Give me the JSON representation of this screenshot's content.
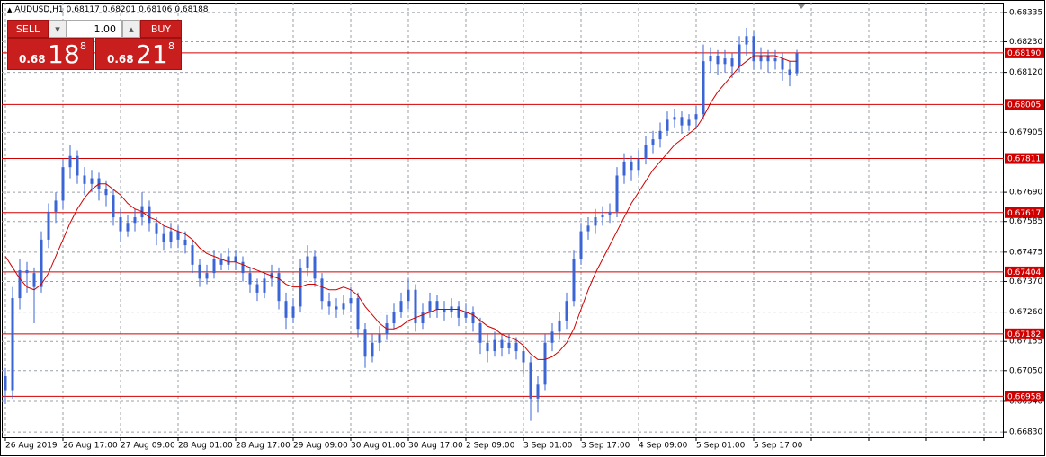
{
  "header": {
    "symbol": "AUDUSD,H1"
  },
  "trade_panel": {
    "sell": "SELL",
    "buy": "BUY",
    "lot": "1.00",
    "sell_price": {
      "prefix": "0.68",
      "big": "18",
      "sup": "8"
    },
    "buy_price": {
      "prefix": "0.68",
      "big": "21",
      "sup": "8"
    }
  },
  "chart_data": {
    "type": "candlestick",
    "up_color": "#3b64d4",
    "down_color": "#3b64d4",
    "ma_color": "#d00000",
    "level_color": "#d00000",
    "grid": true,
    "ylim": [
      0.66811,
      0.6837
    ],
    "yticks": [
      0.68335,
      {
        "value": 0.6823,
        "label": "0.68230"
      },
      {
        "value": 0.6812,
        "label": "0.68120"
      },
      0.67905,
      {
        "value": 0.6769,
        "label": "0.67690"
      },
      0.67585,
      0.67475,
      {
        "value": 0.6737,
        "label": "0.67370"
      },
      {
        "value": 0.6726,
        "label": "0.67260"
      },
      0.67155,
      {
        "value": 0.6705,
        "label": "0.67050"
      },
      {
        "value": 0.6694,
        "label": "0.66940"
      },
      {
        "value": 0.6683,
        "label": "0.66830"
      }
    ],
    "levels": [
      {
        "value": 0.6819,
        "label": "0.68190"
      },
      0.68005,
      0.67811,
      0.67617,
      0.67404,
      0.67182,
      0.66958
    ],
    "categories": [
      "26 Aug 2019",
      null,
      null,
      null,
      null,
      null,
      null,
      null,
      "26 Aug 17:00",
      null,
      null,
      null,
      null,
      null,
      null,
      null,
      "27 Aug 09:00",
      null,
      null,
      null,
      null,
      null,
      null,
      null,
      "28 Aug 01:00",
      null,
      null,
      null,
      null,
      null,
      null,
      null,
      "28 Aug 17:00",
      null,
      null,
      null,
      null,
      null,
      null,
      null,
      "29 Aug 09:00",
      null,
      null,
      null,
      null,
      null,
      null,
      null,
      "30 Aug 01:00",
      null,
      null,
      null,
      null,
      null,
      null,
      null,
      "30 Aug 17:00",
      null,
      null,
      null,
      null,
      null,
      null,
      null,
      "2 Sep 09:00",
      null,
      null,
      null,
      null,
      null,
      null,
      null,
      "3 Sep 01:00",
      null,
      null,
      null,
      null,
      null,
      null,
      null,
      "3 Sep 17:00",
      null,
      null,
      null,
      null,
      null,
      null,
      null,
      "4 Sep 09:00",
      null,
      null,
      null,
      null,
      null,
      null,
      null,
      "5 Sep 01:00",
      null,
      null,
      null,
      null,
      null,
      null,
      null,
      "5 Sep 17:00",
      null,
      null,
      null,
      null,
      null,
      null
    ],
    "ohlc": [
      [
        0.6703,
        0.6706,
        0.6693,
        0.6698
      ],
      [
        0.6698,
        0.6735,
        0.6695,
        0.6731
      ],
      [
        0.6731,
        0.6745,
        0.6727,
        0.6741
      ],
      [
        0.6741,
        0.6744,
        0.6733,
        0.674
      ],
      [
        0.674,
        0.6742,
        0.6722,
        0.6735
      ],
      [
        0.6735,
        0.6755,
        0.6733,
        0.6752
      ],
      [
        0.6752,
        0.6765,
        0.6749,
        0.6762
      ],
      [
        0.6762,
        0.6769,
        0.6758,
        0.6766
      ],
      [
        0.6766,
        0.6781,
        0.6763,
        0.6778
      ],
      [
        0.6778,
        0.6786,
        0.6774,
        0.6782
      ],
      [
        0.6782,
        0.6784,
        0.6772,
        0.6775
      ],
      [
        0.6775,
        0.6778,
        0.6768,
        0.6772
      ],
      [
        0.6772,
        0.6777,
        0.6769,
        0.6774
      ],
      [
        0.6774,
        0.6776,
        0.6766,
        0.677
      ],
      [
        0.677,
        0.6773,
        0.6764,
        0.6768
      ],
      [
        0.6768,
        0.677,
        0.6757,
        0.676
      ],
      [
        0.676,
        0.6763,
        0.6751,
        0.6755
      ],
      [
        0.6755,
        0.6761,
        0.6753,
        0.6758
      ],
      [
        0.6758,
        0.6763,
        0.6755,
        0.676
      ],
      [
        0.676,
        0.6769,
        0.6757,
        0.6764
      ],
      [
        0.6764,
        0.6766,
        0.6755,
        0.6758
      ],
      [
        0.6758,
        0.676,
        0.675,
        0.6754
      ],
      [
        0.6754,
        0.6757,
        0.6748,
        0.6751
      ],
      [
        0.6751,
        0.6758,
        0.6749,
        0.6755
      ],
      [
        0.6755,
        0.6757,
        0.6749,
        0.6752
      ],
      [
        0.6752,
        0.6755,
        0.6747,
        0.675
      ],
      [
        0.675,
        0.6752,
        0.674,
        0.6743
      ],
      [
        0.6743,
        0.6745,
        0.6735,
        0.6738
      ],
      [
        0.6738,
        0.6743,
        0.6736,
        0.674
      ],
      [
        0.674,
        0.6748,
        0.6738,
        0.6745
      ],
      [
        0.6745,
        0.6747,
        0.6741,
        0.6743
      ],
      [
        0.6743,
        0.6749,
        0.6741,
        0.6746
      ],
      [
        0.6746,
        0.6748,
        0.6741,
        0.6744
      ],
      [
        0.6744,
        0.6746,
        0.6737,
        0.674
      ],
      [
        0.674,
        0.6742,
        0.6733,
        0.6736
      ],
      [
        0.6736,
        0.6738,
        0.673,
        0.6733
      ],
      [
        0.6733,
        0.674,
        0.6731,
        0.6738
      ],
      [
        0.6738,
        0.6743,
        0.6735,
        0.674
      ],
      [
        0.674,
        0.6742,
        0.6727,
        0.673
      ],
      [
        0.673,
        0.6733,
        0.672,
        0.6724
      ],
      [
        0.6724,
        0.6731,
        0.6722,
        0.6728
      ],
      [
        0.6728,
        0.6745,
        0.6726,
        0.6742
      ],
      [
        0.6742,
        0.675,
        0.6739,
        0.6746
      ],
      [
        0.6746,
        0.6748,
        0.6735,
        0.6738
      ],
      [
        0.6738,
        0.674,
        0.6727,
        0.673
      ],
      [
        0.673,
        0.6733,
        0.6725,
        0.6728
      ],
      [
        0.6728,
        0.6731,
        0.6724,
        0.6727
      ],
      [
        0.6727,
        0.6732,
        0.6725,
        0.6729
      ],
      [
        0.6729,
        0.6735,
        0.6726,
        0.6731
      ],
      [
        0.6731,
        0.6733,
        0.6717,
        0.672
      ],
      [
        0.672,
        0.6722,
        0.6706,
        0.671
      ],
      [
        0.671,
        0.6718,
        0.6708,
        0.6715
      ],
      [
        0.6715,
        0.6721,
        0.6712,
        0.6718
      ],
      [
        0.6718,
        0.6725,
        0.6716,
        0.6722
      ],
      [
        0.6722,
        0.6729,
        0.672,
        0.6726
      ],
      [
        0.6726,
        0.6733,
        0.6724,
        0.673
      ],
      [
        0.673,
        0.6738,
        0.6727,
        0.6734
      ],
      [
        0.6734,
        0.6736,
        0.6719,
        0.6722
      ],
      [
        0.6722,
        0.6729,
        0.672,
        0.6726
      ],
      [
        0.6726,
        0.6733,
        0.6724,
        0.673
      ],
      [
        0.673,
        0.6732,
        0.6724,
        0.6727
      ],
      [
        0.6727,
        0.673,
        0.6723,
        0.6726
      ],
      [
        0.6726,
        0.6731,
        0.6724,
        0.6728
      ],
      [
        0.6728,
        0.673,
        0.6721,
        0.6724
      ],
      [
        0.6724,
        0.6729,
        0.6722,
        0.6726
      ],
      [
        0.6726,
        0.6728,
        0.6719,
        0.6722
      ],
      [
        0.6722,
        0.6724,
        0.6711,
        0.6715
      ],
      [
        0.6715,
        0.6718,
        0.6708,
        0.6712
      ],
      [
        0.6712,
        0.6719,
        0.671,
        0.6716
      ],
      [
        0.6716,
        0.6718,
        0.671,
        0.6713
      ],
      [
        0.6713,
        0.6718,
        0.6711,
        0.6715
      ],
      [
        0.6715,
        0.6717,
        0.6709,
        0.6712
      ],
      [
        0.6712,
        0.6714,
        0.6704,
        0.6708
      ],
      [
        0.6708,
        0.671,
        0.6687,
        0.6695
      ],
      [
        0.6695,
        0.6703,
        0.669,
        0.67
      ],
      [
        0.67,
        0.6718,
        0.6698,
        0.6715
      ],
      [
        0.6715,
        0.6722,
        0.6712,
        0.6719
      ],
      [
        0.6719,
        0.6726,
        0.6716,
        0.6723
      ],
      [
        0.6723,
        0.6733,
        0.672,
        0.673
      ],
      [
        0.673,
        0.6748,
        0.6728,
        0.6745
      ],
      [
        0.6745,
        0.6758,
        0.6743,
        0.6755
      ],
      [
        0.6755,
        0.676,
        0.6752,
        0.6757
      ],
      [
        0.6757,
        0.6763,
        0.6754,
        0.676
      ],
      [
        0.676,
        0.6764,
        0.6757,
        0.6761
      ],
      [
        0.6761,
        0.6765,
        0.6758,
        0.6762
      ],
      [
        0.6762,
        0.6778,
        0.676,
        0.6775
      ],
      [
        0.6775,
        0.6783,
        0.6772,
        0.678
      ],
      [
        0.678,
        0.6782,
        0.6773,
        0.6777
      ],
      [
        0.6777,
        0.6784,
        0.6775,
        0.6781
      ],
      [
        0.6781,
        0.6789,
        0.6779,
        0.6786
      ],
      [
        0.6786,
        0.6791,
        0.6783,
        0.6788
      ],
      [
        0.6788,
        0.6794,
        0.6785,
        0.6791
      ],
      [
        0.6791,
        0.6798,
        0.6789,
        0.6795
      ],
      [
        0.6795,
        0.6799,
        0.6792,
        0.6796
      ],
      [
        0.6796,
        0.6798,
        0.679,
        0.6793
      ],
      [
        0.6793,
        0.6797,
        0.6791,
        0.6795
      ],
      [
        0.6795,
        0.68,
        0.6792,
        0.6797
      ],
      [
        0.6797,
        0.6822,
        0.6795,
        0.6816
      ],
      [
        0.6816,
        0.6821,
        0.6812,
        0.6818
      ],
      [
        0.6818,
        0.682,
        0.6811,
        0.6815
      ],
      [
        0.6815,
        0.682,
        0.6812,
        0.6817
      ],
      [
        0.6817,
        0.6819,
        0.681,
        0.6814
      ],
      [
        0.6814,
        0.6825,
        0.6812,
        0.6822
      ],
      [
        0.6822,
        0.6828,
        0.6818,
        0.6825
      ],
      [
        0.6825,
        0.6827,
        0.6813,
        0.6816
      ],
      [
        0.6816,
        0.6821,
        0.6813,
        0.6818
      ],
      [
        0.6818,
        0.682,
        0.6812,
        0.6816
      ],
      [
        0.6816,
        0.682,
        0.6813,
        0.6817
      ],
      [
        0.6817,
        0.6819,
        0.6809,
        0.6813
      ],
      [
        0.6813,
        0.6816,
        0.6807,
        0.6811
      ],
      [
        0.68117,
        0.68201,
        0.68106,
        0.68188
      ]
    ],
    "ma": [
      0.6746,
      0.6742,
      0.6738,
      0.6735,
      0.6734,
      0.6736,
      0.674,
      0.6746,
      0.6752,
      0.6758,
      0.6763,
      0.6767,
      0.677,
      0.6772,
      0.6772,
      0.677,
      0.6768,
      0.6765,
      0.6763,
      0.6762,
      0.676,
      0.6759,
      0.6757,
      0.6756,
      0.6755,
      0.6754,
      0.6752,
      0.6749,
      0.6747,
      0.6746,
      0.6745,
      0.6744,
      0.6744,
      0.6743,
      0.6742,
      0.6741,
      0.674,
      0.6739,
      0.6738,
      0.6736,
      0.6735,
      0.6735,
      0.6736,
      0.6736,
      0.6735,
      0.6734,
      0.6734,
      0.6735,
      0.6734,
      0.6732,
      0.6728,
      0.6725,
      0.6722,
      0.672,
      0.672,
      0.6721,
      0.6723,
      0.6724,
      0.6725,
      0.6726,
      0.6727,
      0.6727,
      0.6727,
      0.6727,
      0.6726,
      0.6725,
      0.6723,
      0.6721,
      0.672,
      0.6718,
      0.6717,
      0.6716,
      0.6714,
      0.6711,
      0.6709,
      0.6709,
      0.671,
      0.6712,
      0.6715,
      0.672,
      0.6727,
      0.6734,
      0.674,
      0.6745,
      0.675,
      0.6755,
      0.676,
      0.6765,
      0.6769,
      0.6773,
      0.6777,
      0.678,
      0.6783,
      0.6786,
      0.6788,
      0.679,
      0.6792,
      0.6796,
      0.6801,
      0.6805,
      0.6808,
      0.6811,
      0.6814,
      0.6816,
      0.6818,
      0.6818,
      0.6818,
      0.6818,
      0.6817,
      0.6816,
      0.6816
    ]
  }
}
